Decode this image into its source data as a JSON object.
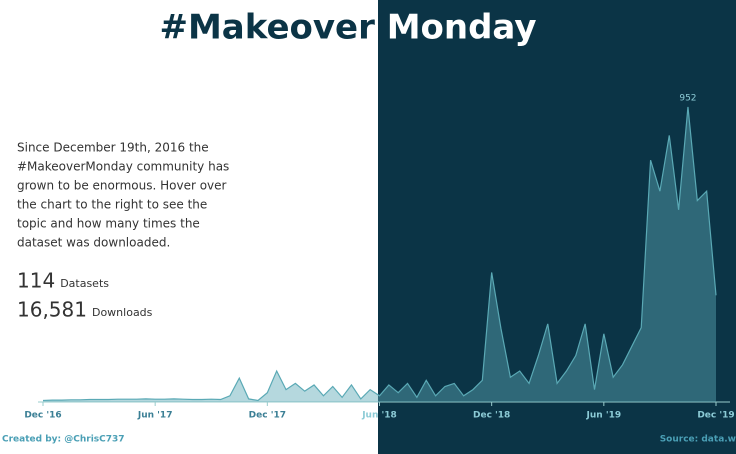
{
  "title": "#Makeover Monday",
  "intro": [
    "Since December 19th, 2016 the",
    "#MakeoverMonday community has",
    "grown to be enormous. Hover over",
    "the chart to the right to see the",
    "topic and how many times the",
    "dataset was downloaded."
  ],
  "stats": [
    {
      "value": "114",
      "label": "Datasets"
    },
    {
      "value": "16,581",
      "label": "Downloads"
    }
  ],
  "footer": {
    "credit": "Created by: @ChrisC737",
    "source": "Source: data.w"
  },
  "chart_data": {
    "type": "area",
    "values": [
      5,
      6,
      6,
      7,
      7,
      8,
      8,
      8,
      9,
      9,
      9,
      10,
      9,
      9,
      10,
      9,
      8,
      8,
      9,
      8,
      20,
      77,
      10,
      5,
      30,
      100,
      40,
      60,
      35,
      55,
      20,
      50,
      15,
      55,
      10,
      40,
      20,
      55,
      30,
      60,
      15,
      70,
      20,
      50,
      60,
      20,
      40,
      70,
      418,
      236,
      80,
      100,
      60,
      150,
      252,
      60,
      100,
      150,
      252,
      40,
      220,
      80,
      120,
      180,
      240,
      780,
      680,
      860,
      620,
      952,
      650,
      680,
      344
    ],
    "xticks": [
      {
        "value": 0,
        "label": "Dec '16"
      },
      {
        "value": 12,
        "label": "Jun '17"
      },
      {
        "value": 24,
        "label": "Dec '17"
      },
      {
        "value": 36,
        "label": "Jun '18"
      },
      {
        "value": 48,
        "label": "Dec '18"
      },
      {
        "value": 60,
        "label": "Jun '19"
      },
      {
        "value": 72,
        "label": "Dec '19"
      }
    ],
    "ylim": [
      0,
      1000
    ],
    "color": "#5aa9b5"
  }
}
